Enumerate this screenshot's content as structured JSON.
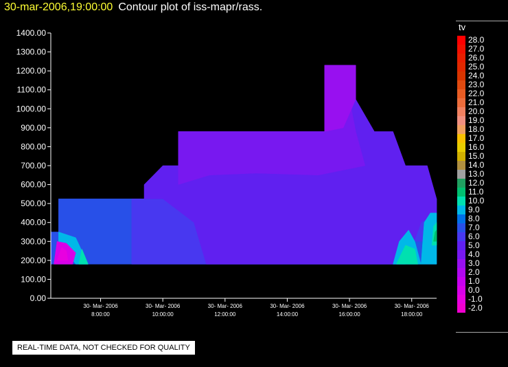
{
  "header": {
    "timestamp": "30-mar-2006,19:00:00",
    "title": "Contour plot of iss-mapr/rass."
  },
  "notice": "REAL-TIME DATA, NOT CHECKED FOR QUALITY",
  "chart_data": {
    "type": "heatmap",
    "title": "Contour plot of iss-mapr/rass.",
    "xlabel": "",
    "ylabel": "",
    "ylim": [
      0,
      1400
    ],
    "xlim_hours": [
      6.4,
      18.8
    ],
    "y_ticks": [
      "0.00",
      "100.00",
      "200.00",
      "300.00",
      "400.00",
      "500.00",
      "600.00",
      "700.00",
      "800.00",
      "900.00",
      "1000.00",
      "1100.00",
      "1200.00",
      "1300.00",
      "1400.00"
    ],
    "x_ticks": [
      {
        "hour": 8,
        "date": "30- Mar- 2006",
        "time": "8:00:00"
      },
      {
        "hour": 10,
        "date": "30- Mar- 2006",
        "time": "10:00:00"
      },
      {
        "hour": 12,
        "date": "30- Mar- 2006",
        "time": "12:00:00"
      },
      {
        "hour": 14,
        "date": "30- Mar- 2006",
        "time": "14:00:00"
      },
      {
        "hour": 16,
        "date": "30- Mar- 2006",
        "time": "16:00:00"
      },
      {
        "hour": 18,
        "date": "30- Mar- 2006",
        "time": "18:00:00"
      }
    ],
    "grid": false,
    "legend": {
      "variable": "tv",
      "placement": "right",
      "levels": [
        {
          "label": "28.0",
          "color": "#ff0000"
        },
        {
          "label": "27.0",
          "color": "#f21000"
        },
        {
          "label": "26.0",
          "color": "#e81e00"
        },
        {
          "label": "25.0",
          "color": "#e02800"
        },
        {
          "label": "24.0",
          "color": "#d83400"
        },
        {
          "label": "23.0",
          "color": "#e04a10"
        },
        {
          "label": "22.0",
          "color": "#e85c24"
        },
        {
          "label": "21.0",
          "color": "#ec6c3c"
        },
        {
          "label": "20.0",
          "color": "#f08060"
        },
        {
          "label": "19.0",
          "color": "#f09080"
        },
        {
          "label": "18.0",
          "color": "#f0a060"
        },
        {
          "label": "17.0",
          "color": "#f8c000"
        },
        {
          "label": "16.0",
          "color": "#e8cc00"
        },
        {
          "label": "15.0",
          "color": "#d0b000"
        },
        {
          "label": "14.0",
          "color": "#b09040"
        },
        {
          "label": "13.0",
          "color": "#a0a0a0"
        },
        {
          "label": "12.0",
          "color": "#20a060"
        },
        {
          "label": "11.0",
          "color": "#00c070"
        },
        {
          "label": "10.0",
          "color": "#00e0b0"
        },
        {
          "label": "9.0",
          "color": "#00b8e8"
        },
        {
          "label": "8.0",
          "color": "#0070e8"
        },
        {
          "label": "7.0",
          "color": "#2850e8"
        },
        {
          "label": "6.0",
          "color": "#4838f0"
        },
        {
          "label": "5.0",
          "color": "#6020f0"
        },
        {
          "label": "4.0",
          "color": "#7818f0"
        },
        {
          "label": "3.0",
          "color": "#9810f0"
        },
        {
          "label": "2.0",
          "color": "#b008f0"
        },
        {
          "label": "1.0",
          "color": "#c800f0"
        },
        {
          "label": "0.0",
          "color": "#d800e8"
        },
        {
          "label": "-1.0",
          "color": "#e800e0"
        },
        {
          "label": "-2.0",
          "color": "#f000d0"
        }
      ]
    },
    "regions": [
      {
        "tv": 7.0,
        "color": "#2850e8",
        "outline": [
          [
            6.4,
            180
          ],
          [
            6.4,
            350
          ],
          [
            6.65,
            350
          ],
          [
            6.65,
            525
          ],
          [
            18.8,
            525
          ],
          [
            18.8,
            180
          ]
        ]
      },
      {
        "tv": 6.0,
        "color": "#4838f0",
        "outline": [
          [
            9.0,
            180
          ],
          [
            9.0,
            525
          ],
          [
            18.6,
            525
          ],
          [
            18.6,
            300
          ],
          [
            17.9,
            300
          ],
          [
            17.5,
            180
          ]
        ]
      },
      {
        "tv": 5.0,
        "color": "#6020f0",
        "outline": [
          [
            9.4,
            525
          ],
          [
            9.4,
            600
          ],
          [
            10.0,
            700
          ],
          [
            10.5,
            700
          ],
          [
            10.5,
            880
          ],
          [
            15.2,
            880
          ],
          [
            15.2,
            1230
          ],
          [
            16.2,
            1230
          ],
          [
            16.2,
            1050
          ],
          [
            16.8,
            880
          ],
          [
            17.4,
            880
          ],
          [
            17.8,
            700
          ],
          [
            18.5,
            700
          ],
          [
            18.8,
            525
          ],
          [
            18.8,
            450
          ],
          [
            18.3,
            400
          ],
          [
            17.8,
            180
          ],
          [
            11.4,
            180
          ],
          [
            11.0,
            400
          ],
          [
            10.0,
            525
          ]
        ]
      },
      {
        "tv": 4.0,
        "color": "#7818f0",
        "outline": [
          [
            10.5,
            600
          ],
          [
            10.5,
            880
          ],
          [
            15.2,
            880
          ],
          [
            15.2,
            1050
          ],
          [
            16.0,
            1050
          ],
          [
            16.2,
            880
          ],
          [
            16.5,
            700
          ],
          [
            15.0,
            650
          ],
          [
            13.0,
            660
          ],
          [
            11.5,
            650
          ]
        ]
      },
      {
        "tv": 3.0,
        "color": "#9810f0",
        "outline": [
          [
            15.2,
            880
          ],
          [
            15.2,
            1230
          ],
          [
            16.2,
            1230
          ],
          [
            16.2,
            1050
          ],
          [
            15.8,
            900
          ]
        ]
      },
      {
        "tv": 9.0,
        "color": "#00b8e8",
        "outline": [
          [
            17.4,
            180
          ],
          [
            17.6,
            300
          ],
          [
            17.9,
            360
          ],
          [
            18.1,
            300
          ],
          [
            18.3,
            180
          ]
        ]
      },
      {
        "tv": 9.0,
        "color": "#00b8e8",
        "outline": [
          [
            18.3,
            180
          ],
          [
            18.4,
            400
          ],
          [
            18.6,
            450
          ],
          [
            18.8,
            450
          ],
          [
            18.8,
            180
          ]
        ]
      },
      {
        "tv": 9.0,
        "color": "#00b8e8",
        "outline": [
          [
            6.65,
            300
          ],
          [
            6.65,
            350
          ],
          [
            7.2,
            320
          ],
          [
            7.6,
            180
          ],
          [
            7.2,
            180
          ]
        ]
      },
      {
        "tv": 10.0,
        "color": "#00e0b0",
        "outline": [
          [
            17.5,
            180
          ],
          [
            17.8,
            280
          ],
          [
            18.1,
            260
          ],
          [
            18.2,
            180
          ]
        ]
      },
      {
        "tv": 10.0,
        "color": "#00e0b0",
        "outline": [
          [
            18.65,
            280
          ],
          [
            18.8,
            280
          ],
          [
            18.8,
            400
          ],
          [
            18.7,
            380
          ]
        ]
      },
      {
        "tv": 11.0,
        "color": "#00c070",
        "outline": [
          [
            18.7,
            300
          ],
          [
            18.8,
            300
          ],
          [
            18.8,
            360
          ],
          [
            18.75,
            350
          ]
        ]
      },
      {
        "tv": 10.0,
        "color": "#00e0b0",
        "outline": [
          [
            7.3,
            180
          ],
          [
            7.4,
            260
          ],
          [
            7.5,
            220
          ],
          [
            7.6,
            180
          ]
        ]
      },
      {
        "tv": 0.0,
        "color": "#d800e8",
        "outline": [
          [
            6.5,
            180
          ],
          [
            6.6,
            300
          ],
          [
            6.9,
            290
          ],
          [
            7.2,
            240
          ],
          [
            7.1,
            180
          ]
        ]
      },
      {
        "tv": -1.0,
        "color": "#e800e0",
        "outline": [
          [
            6.6,
            200
          ],
          [
            6.75,
            270
          ],
          [
            6.9,
            250
          ],
          [
            6.95,
            200
          ]
        ]
      }
    ]
  }
}
